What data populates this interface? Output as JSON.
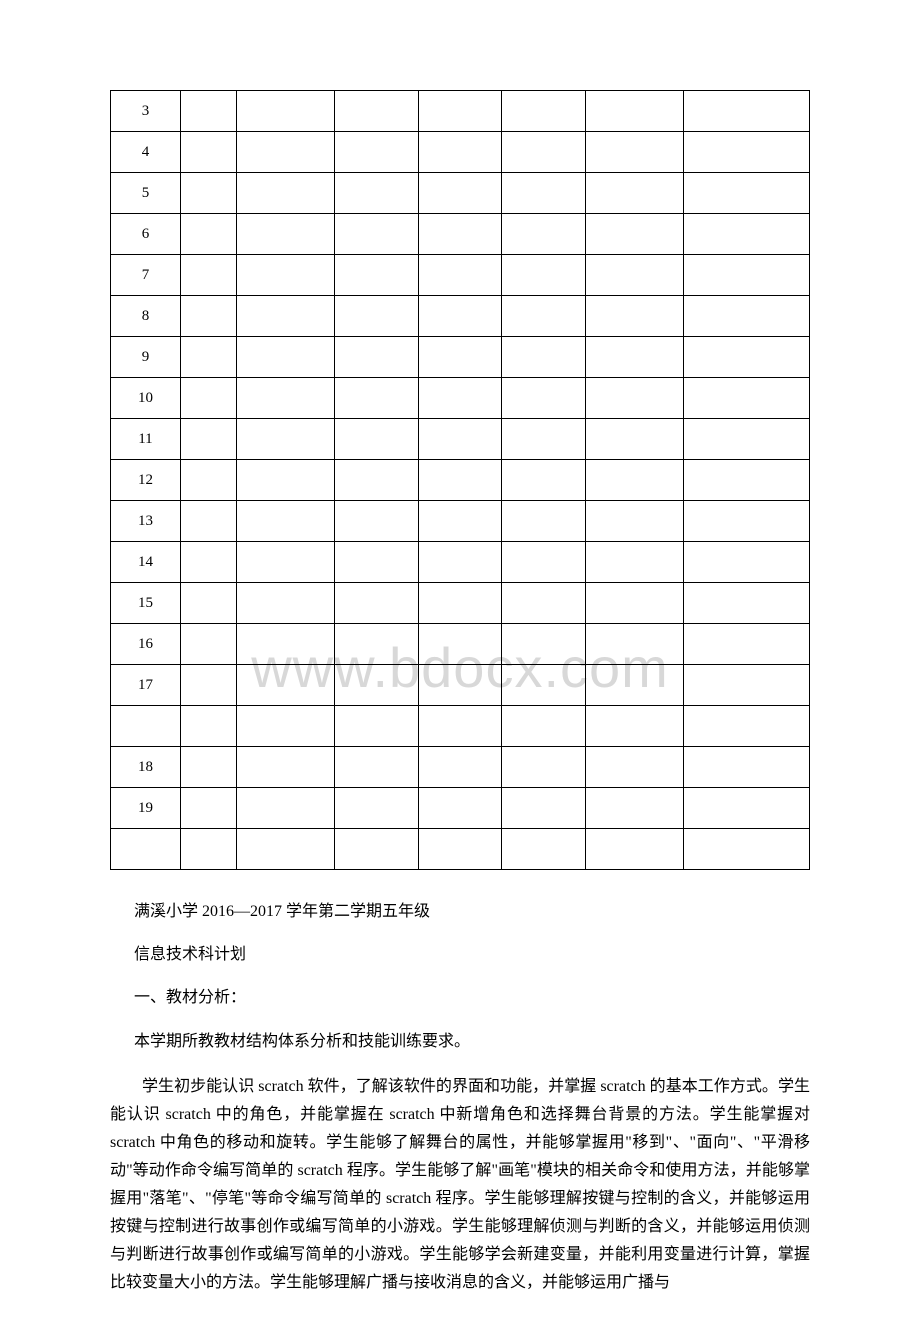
{
  "watermark": "www.bdocx.com",
  "table": {
    "rows": [
      [
        "3",
        "",
        "",
        "",
        "",
        "",
        "",
        ""
      ],
      [
        "4",
        "",
        "",
        "",
        "",
        "",
        "",
        ""
      ],
      [
        "5",
        "",
        "",
        "",
        "",
        "",
        "",
        ""
      ],
      [
        "6",
        "",
        "",
        "",
        "",
        "",
        "",
        ""
      ],
      [
        "7",
        "",
        "",
        "",
        "",
        "",
        "",
        ""
      ],
      [
        "8",
        "",
        "",
        "",
        "",
        "",
        "",
        ""
      ],
      [
        "9",
        "",
        "",
        "",
        "",
        "",
        "",
        ""
      ],
      [
        "10",
        "",
        "",
        "",
        "",
        "",
        "",
        ""
      ],
      [
        "11",
        "",
        "",
        "",
        "",
        "",
        "",
        ""
      ],
      [
        "12",
        "",
        "",
        "",
        "",
        "",
        "",
        ""
      ],
      [
        "13",
        "",
        "",
        "",
        "",
        "",
        "",
        ""
      ],
      [
        "14",
        "",
        "",
        "",
        "",
        "",
        "",
        ""
      ],
      [
        "15",
        "",
        "",
        "",
        "",
        "",
        "",
        ""
      ],
      [
        "16",
        "",
        "",
        "",
        "",
        "",
        "",
        ""
      ],
      [
        "17",
        "",
        "",
        "",
        "",
        "",
        "",
        ""
      ],
      [
        "",
        "",
        "",
        "",
        "",
        "",
        "",
        ""
      ],
      [
        "18",
        "",
        "",
        "",
        "",
        "",
        "",
        ""
      ],
      [
        "19",
        "",
        "",
        "",
        "",
        "",
        "",
        ""
      ],
      [
        "",
        "",
        "",
        "",
        "",
        "",
        "",
        ""
      ]
    ]
  },
  "content": {
    "line1": "满溪小学 2016—2017 学年第二学期五年级",
    "line2": "信息技术科计划",
    "line3": "一、教材分析：",
    "line4": "本学期所教教材结构体系分析和技能训练要求。",
    "paragraph": "学生初步能认识 scratch 软件，了解该软件的界面和功能，并掌握 scratch 的基本工作方式。学生能认识 scratch 中的角色，并能掌握在 scratch 中新增角色和选择舞台背景的方法。学生能掌握对 scratch 中角色的移动和旋转。学生能够了解舞台的属性，并能够掌握用\"移到\"、\"面向\"、\"平滑移动\"等动作命令编写简单的 scratch 程序。学生能够了解\"画笔\"模块的相关命令和使用方法，并能够掌握用\"落笔\"、\"停笔\"等命令编写简单的 scratch 程序。学生能够理解按键与控制的含义，并能够运用按键与控制进行故事创作或编写简单的小游戏。学生能够理解侦测与判断的含义，并能够运用侦测与判断进行故事创作或编写简单的小游戏。学生能够学会新建变量，并能利用变量进行计算，掌握比较变量大小的方法。学生能够理解广播与接收消息的含义，并能够运用广播与"
  }
}
